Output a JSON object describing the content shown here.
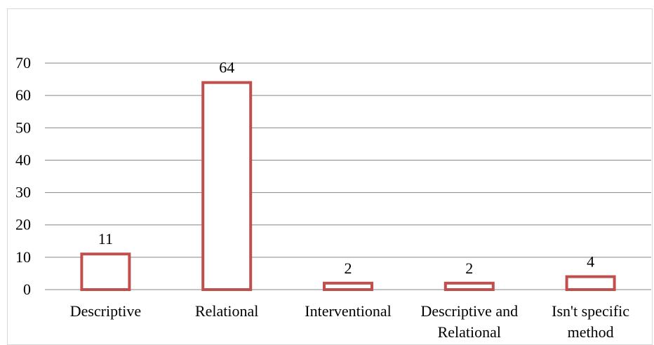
{
  "chart_data": {
    "type": "bar",
    "title": "",
    "xlabel": "",
    "ylabel": "",
    "categories": [
      [
        "Descriptive"
      ],
      [
        "Relational"
      ],
      [
        "Interventional"
      ],
      [
        "Descriptive and",
        "Relational"
      ],
      [
        "Isn't specific",
        "method"
      ]
    ],
    "values": [
      11,
      64,
      2,
      2,
      4
    ],
    "data_labels": [
      "11",
      "64",
      "2",
      "2",
      "4"
    ],
    "ylim": [
      0,
      70
    ],
    "yticks": [
      0,
      10,
      20,
      30,
      40,
      50,
      60,
      70
    ],
    "grid": true,
    "legend": "none",
    "colors": {
      "bar_outline": "#c0504d",
      "bar_fill": "#ffffff",
      "gridline": "#868686"
    }
  }
}
